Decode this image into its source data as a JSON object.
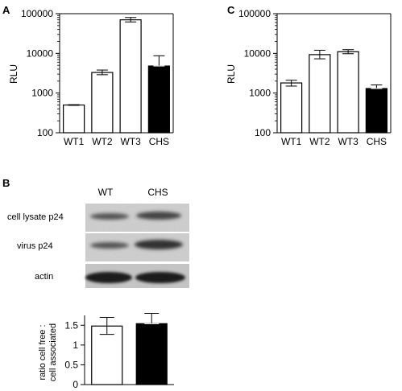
{
  "panels": {
    "A": "A",
    "B": "B",
    "C": "C"
  },
  "chart_data": [
    {
      "id": "A",
      "type": "bar",
      "scale": "log",
      "ylabel": "RLU",
      "ylim": [
        100,
        100000
      ],
      "yticks": [
        "100",
        "1000",
        "10000",
        "100000"
      ],
      "categories": [
        "WT1",
        "WT2",
        "WT3",
        "CHS"
      ],
      "values": [
        500,
        3300,
        70000,
        4800
      ],
      "error_high": [
        510,
        3800,
        80000,
        8700
      ],
      "error_low": [
        490,
        2900,
        62000,
        4800
      ],
      "fills": [
        "#ffffff",
        "#ffffff",
        "#ffffff",
        "#000000"
      ]
    },
    {
      "id": "C",
      "type": "bar",
      "scale": "log",
      "ylabel": "RLU",
      "ylim": [
        100,
        100000
      ],
      "yticks": [
        "100",
        "1000",
        "10000",
        "100000"
      ],
      "categories": [
        "WT1",
        "WT2",
        "WT3",
        "CHS"
      ],
      "values": [
        1800,
        9300,
        11000,
        1300
      ],
      "error_high": [
        2100,
        12000,
        12400,
        1600
      ],
      "error_low": [
        1500,
        7300,
        9800,
        1300
      ],
      "fills": [
        "#ffffff",
        "#ffffff",
        "#ffffff",
        "#000000"
      ]
    },
    {
      "id": "B-quant",
      "type": "bar",
      "scale": "linear",
      "ylabel": "ratio cell free : cell associated",
      "ylabel_lines": [
        "ratio cell free :",
        "cell associated"
      ],
      "ylim": [
        0,
        1.75
      ],
      "yticks": [
        "0",
        "0.5",
        "1",
        "1.5"
      ],
      "categories": [
        "WT",
        "CHS"
      ],
      "values": [
        1.48,
        1.54
      ],
      "error_high": [
        1.7,
        1.8
      ],
      "error_low": [
        1.27,
        1.54
      ],
      "fills": [
        "#ffffff",
        "#000000"
      ]
    }
  ],
  "blot": {
    "lanes": [
      "WT",
      "CHS"
    ],
    "rows": [
      {
        "label": "cell lysate p24",
        "wt_intensity": 0.35,
        "chs_intensity": 0.55
      },
      {
        "label": "virus p24",
        "wt_intensity": 0.35,
        "chs_intensity": 0.75
      },
      {
        "label": "actin",
        "wt_intensity": 0.95,
        "chs_intensity": 0.95
      }
    ]
  }
}
